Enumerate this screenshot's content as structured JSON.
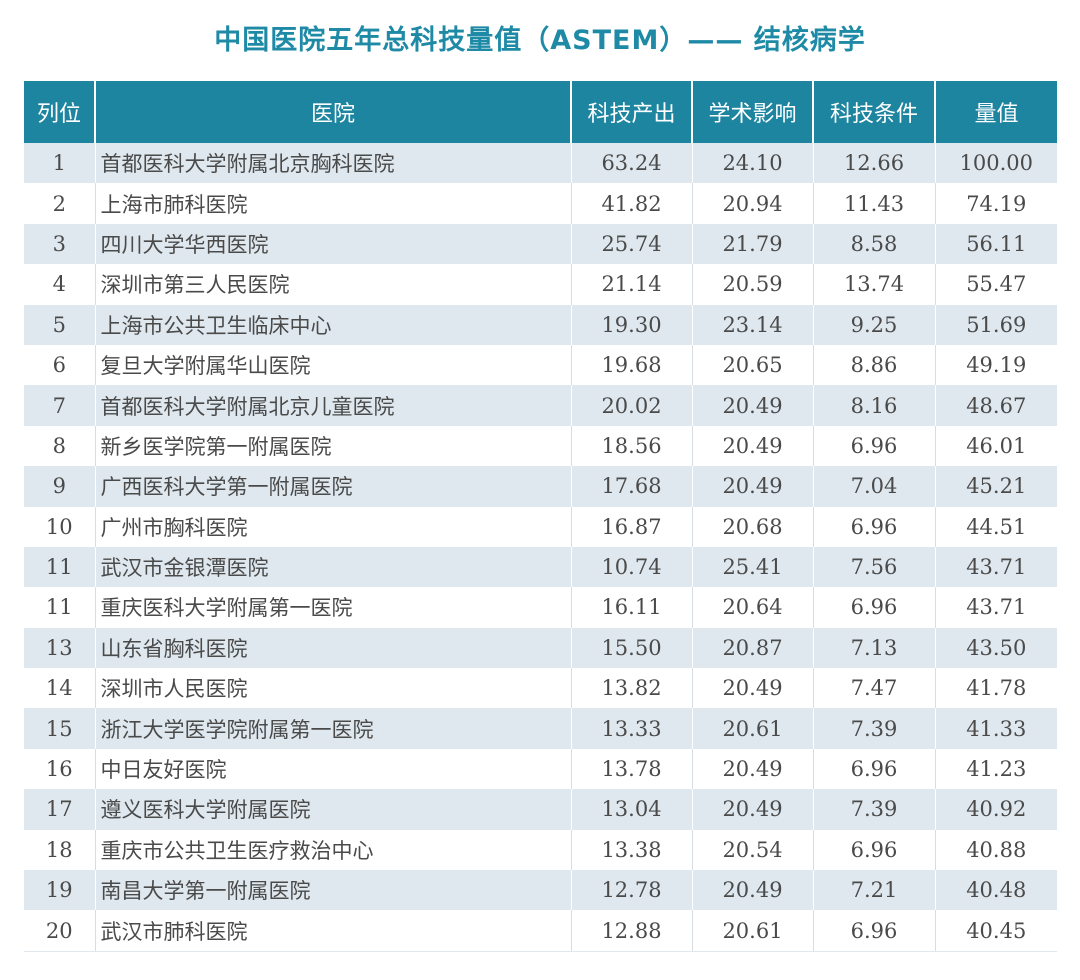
{
  "title": "中国医院五年总科技量值（ASTEM）—— 结核病学",
  "colors": {
    "header_bg": "#1e85a0",
    "title": "#1e8aa6",
    "stripe": "#dfe8ef"
  },
  "table": {
    "headers": [
      "列位",
      "医院",
      "科技产出",
      "学术影响",
      "科技条件",
      "量值"
    ],
    "rows": [
      [
        "1",
        "首都医科大学附属北京胸科医院",
        "63.24",
        "24.10",
        "12.66",
        "100.00"
      ],
      [
        "2",
        "上海市肺科医院",
        "41.82",
        "20.94",
        "11.43",
        "74.19"
      ],
      [
        "3",
        "四川大学华西医院",
        "25.74",
        "21.79",
        "8.58",
        "56.11"
      ],
      [
        "4",
        "深圳市第三人民医院",
        "21.14",
        "20.59",
        "13.74",
        "55.47"
      ],
      [
        "5",
        "上海市公共卫生临床中心",
        "19.30",
        "23.14",
        "9.25",
        "51.69"
      ],
      [
        "6",
        "复旦大学附属华山医院",
        "19.68",
        "20.65",
        "8.86",
        "49.19"
      ],
      [
        "7",
        "首都医科大学附属北京儿童医院",
        "20.02",
        "20.49",
        "8.16",
        "48.67"
      ],
      [
        "8",
        "新乡医学院第一附属医院",
        "18.56",
        "20.49",
        "6.96",
        "46.01"
      ],
      [
        "9",
        "广西医科大学第一附属医院",
        "17.68",
        "20.49",
        "7.04",
        "45.21"
      ],
      [
        "10",
        "广州市胸科医院",
        "16.87",
        "20.68",
        "6.96",
        "44.51"
      ],
      [
        "11",
        "武汉市金银潭医院",
        "10.74",
        "25.41",
        "7.56",
        "43.71"
      ],
      [
        "11",
        "重庆医科大学附属第一医院",
        "16.11",
        "20.64",
        "6.96",
        "43.71"
      ],
      [
        "13",
        "山东省胸科医院",
        "15.50",
        "20.87",
        "7.13",
        "43.50"
      ],
      [
        "14",
        "深圳市人民医院",
        "13.82",
        "20.49",
        "7.47",
        "41.78"
      ],
      [
        "15",
        "浙江大学医学院附属第一医院",
        "13.33",
        "20.61",
        "7.39",
        "41.33"
      ],
      [
        "16",
        "中日友好医院",
        "13.78",
        "20.49",
        "6.96",
        "41.23"
      ],
      [
        "17",
        "遵义医科大学附属医院",
        "13.04",
        "20.49",
        "7.39",
        "40.92"
      ],
      [
        "18",
        "重庆市公共卫生医疗救治中心",
        "13.38",
        "20.54",
        "6.96",
        "40.88"
      ],
      [
        "19",
        "南昌大学第一附属医院",
        "12.78",
        "20.49",
        "7.21",
        "40.48"
      ],
      [
        "20",
        "武汉市肺科医院",
        "12.88",
        "20.61",
        "6.96",
        "40.45"
      ]
    ]
  }
}
